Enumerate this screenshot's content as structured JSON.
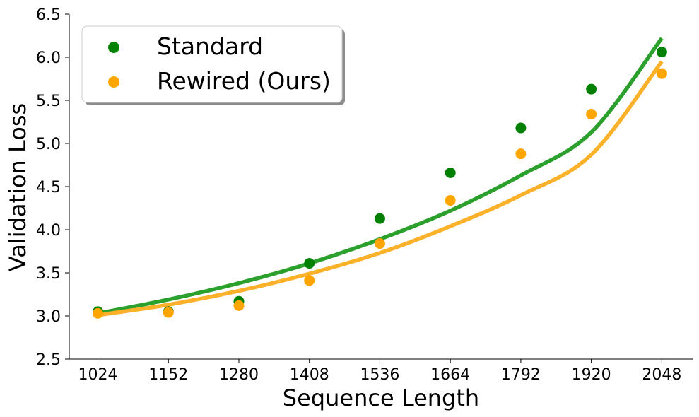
{
  "chart_data": {
    "type": "scatter",
    "xlabel": "Sequence Length",
    "ylabel": "Validation Loss",
    "x_ticks": [
      1024,
      1152,
      1280,
      1408,
      1536,
      1664,
      1792,
      1920,
      2048
    ],
    "y_ticks": [
      "2.5",
      "3.0",
      "3.5",
      "4.0",
      "4.5",
      "5.0",
      "5.5",
      "6.0",
      "6.5"
    ],
    "xlim": [
      972,
      2104
    ],
    "ylim": [
      2.5,
      6.5
    ],
    "grid": false,
    "legend_position": "top-left",
    "series": [
      {
        "name": "Standard",
        "color": "#008000",
        "fit_color": "#2ca02c",
        "x": [
          1024,
          1152,
          1280,
          1408,
          1536,
          1664,
          1792,
          1920,
          2048
        ],
        "y": [
          3.05,
          3.05,
          3.17,
          3.61,
          4.13,
          4.66,
          5.18,
          5.63,
          6.06
        ],
        "fit": {
          "x": [
            1024,
            1152,
            1280,
            1408,
            1536,
            1664,
            1792,
            1920,
            2048
          ],
          "y": [
            3.03,
            3.19,
            3.38,
            3.61,
            3.89,
            4.22,
            4.63,
            5.13,
            6.22
          ]
        }
      },
      {
        "name": "Rewired (Ours)",
        "color": "#ffa500",
        "fit_color": "#fbb12a",
        "x": [
          1024,
          1152,
          1280,
          1408,
          1536,
          1664,
          1792,
          1920,
          2048
        ],
        "y": [
          3.03,
          3.04,
          3.12,
          3.41,
          3.84,
          4.34,
          4.88,
          5.34,
          5.81
        ],
        "fit": {
          "x": [
            1024,
            1152,
            1280,
            1408,
            1536,
            1664,
            1792,
            1920,
            2048
          ],
          "y": [
            3.01,
            3.13,
            3.29,
            3.49,
            3.73,
            4.04,
            4.4,
            4.87,
            5.95
          ]
        }
      }
    ]
  }
}
